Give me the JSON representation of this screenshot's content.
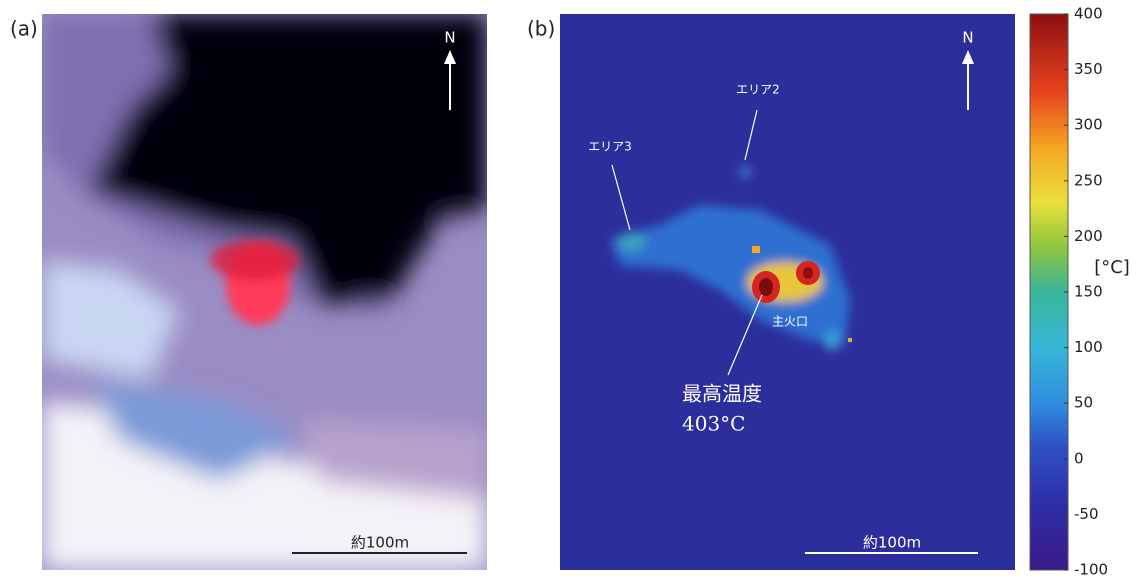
{
  "panels": [
    {
      "label": "(a)",
      "north": "N",
      "scale_bar": "約100m"
    },
    {
      "label": "(b)",
      "north": "N",
      "scale_bar": "約100m",
      "annotations": [
        "エリア2",
        "エリア3",
        "主火口"
      ],
      "max_temp_title": "最高温度",
      "max_temp_value": "403°C"
    }
  ],
  "colorbar": {
    "unit": "[°C]",
    "lim": [
      -100,
      400
    ],
    "ticks": [
      400,
      350,
      300,
      250,
      200,
      150,
      100,
      50,
      0,
      -50,
      -100
    ]
  }
}
